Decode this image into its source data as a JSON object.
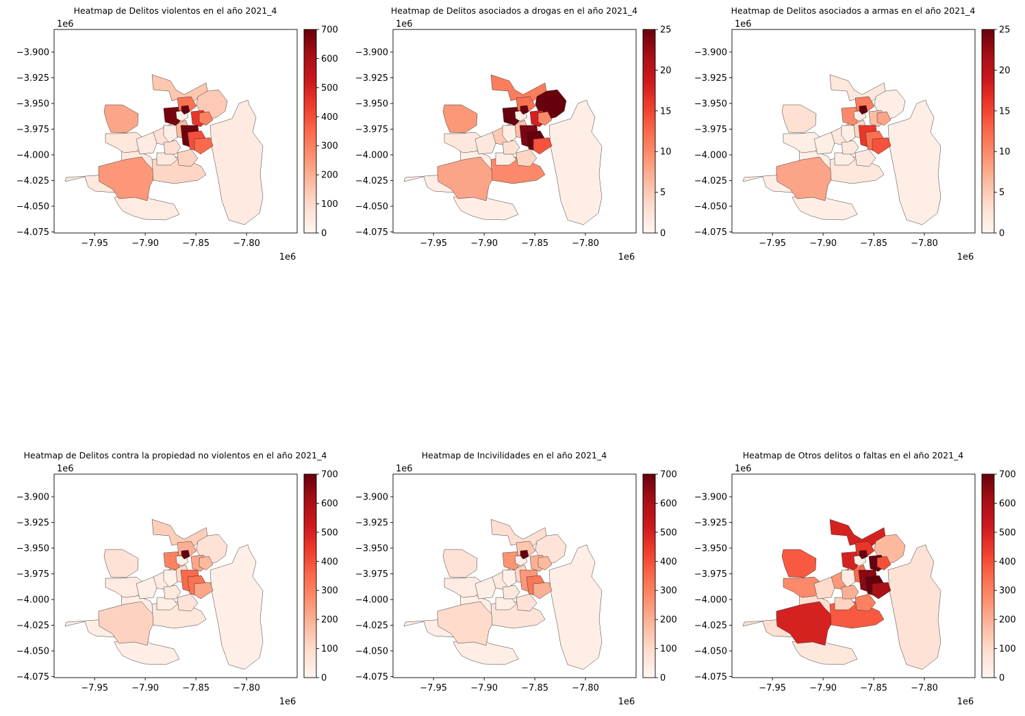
{
  "figure": {
    "panels": [
      {
        "title": "Heatmap de Delitos violentos en el año 2021_4",
        "vmax": 700,
        "cbar_ticks": [
          0,
          100,
          200,
          300,
          400,
          500,
          600,
          700
        ]
      },
      {
        "title": "Heatmap de Delitos asociados a drogas en el año 2021_4",
        "vmax": 25,
        "cbar_ticks": [
          0,
          5,
          10,
          15,
          20,
          25
        ]
      },
      {
        "title": "Heatmap de Delitos asociados a armas en el año 2021_4",
        "vmax": 25,
        "cbar_ticks": [
          0,
          5,
          10,
          15,
          20,
          25
        ]
      },
      {
        "title": "Heatmap de Delitos contra la propiedad no violentos en el año 2021_4",
        "vmax": 700,
        "cbar_ticks": [
          0,
          100,
          200,
          300,
          400,
          500,
          600,
          700
        ]
      },
      {
        "title": "Heatmap de Incivilidades en el año 2021_4",
        "vmax": 700,
        "cbar_ticks": [
          0,
          100,
          200,
          300,
          400,
          500,
          600,
          700
        ]
      },
      {
        "title": "Heatmap de Otros delitos o faltas en el año 2021_4",
        "vmax": 700,
        "cbar_ticks": [
          0,
          100,
          200,
          300,
          400,
          500,
          600,
          700
        ]
      }
    ],
    "x_ticks": [
      "−7.95",
      "−7.90",
      "−7.85",
      "−7.80"
    ],
    "y_ticks": [
      "−3.900",
      "−3.925",
      "−3.950",
      "−3.975",
      "−4.000",
      "−4.025",
      "−4.050",
      "−4.075"
    ],
    "offset_label": "1e6",
    "colormap": "Reds",
    "cmap_stops": [
      "#fff5f0",
      "#fee0d2",
      "#fcbba1",
      "#fc9272",
      "#fb6a4a",
      "#ef3b2c",
      "#cb181d",
      "#a50f15",
      "#67000d"
    ]
  },
  "chart_data": [
    {
      "type": "heatmap",
      "title": "Heatmap de Delitos violentos en el año 2021_4",
      "xlabel": "",
      "ylabel": "",
      "xlim": [
        -7.99,
        -7.75
      ],
      "ylim": [
        -4.076,
        -3.878
      ],
      "colorbar": {
        "vmin": 0,
        "vmax": 700,
        "ticks": [
          0,
          100,
          200,
          300,
          400,
          500,
          600,
          700
        ]
      },
      "regions": [
        {
          "name": "",
          "value": 50
        },
        {
          "name": "",
          "value": 40
        },
        {
          "name": "",
          "value": 150
        },
        {
          "name": "",
          "value": 250
        },
        {
          "name": "",
          "value": 220
        },
        {
          "name": "",
          "value": 140
        },
        {
          "name": "",
          "value": 60
        },
        {
          "name": "",
          "value": 45
        },
        {
          "name": "",
          "value": 110
        },
        {
          "name": "",
          "value": 80
        },
        {
          "name": "",
          "value": 40
        },
        {
          "name": "",
          "value": 50
        },
        {
          "name": "",
          "value": 120
        },
        {
          "name": "",
          "value": 90
        },
        {
          "name": "",
          "value": 180
        },
        {
          "name": "",
          "value": 450
        },
        {
          "name": "",
          "value": 680
        },
        {
          "name": "",
          "value": 690
        },
        {
          "name": "",
          "value": 400
        },
        {
          "name": "",
          "value": 330
        },
        {
          "name": "",
          "value": 30
        },
        {
          "name": "",
          "value": 350
        },
        {
          "name": "",
          "value": 20
        },
        {
          "name": "",
          "value": 300
        },
        {
          "name": "",
          "value": 700
        }
      ]
    },
    {
      "type": "heatmap",
      "title": "Heatmap de Delitos asociados a drogas en el año 2021_4",
      "xlabel": "",
      "ylabel": "",
      "xlim": [
        -7.99,
        -7.75
      ],
      "ylim": [
        -4.076,
        -3.878
      ],
      "colorbar": {
        "vmin": 0,
        "vmax": 25,
        "ticks": [
          0,
          5,
          10,
          15,
          20,
          25
        ]
      },
      "regions": [
        {
          "name": "",
          "value": 1
        },
        {
          "name": "",
          "value": 1
        },
        {
          "name": "",
          "value": 11
        },
        {
          "name": "",
          "value": 8
        },
        {
          "name": "",
          "value": 9
        },
        {
          "name": "",
          "value": 25
        },
        {
          "name": "",
          "value": 2
        },
        {
          "name": "",
          "value": 1
        },
        {
          "name": "",
          "value": 10
        },
        {
          "name": "",
          "value": 5
        },
        {
          "name": "",
          "value": 2
        },
        {
          "name": "",
          "value": 1
        },
        {
          "name": "",
          "value": 4
        },
        {
          "name": "",
          "value": 3
        },
        {
          "name": "",
          "value": 6
        },
        {
          "name": "",
          "value": 18
        },
        {
          "name": "",
          "value": 25
        },
        {
          "name": "",
          "value": 24
        },
        {
          "name": "",
          "value": 25
        },
        {
          "name": "",
          "value": 12
        },
        {
          "name": "",
          "value": 1
        },
        {
          "name": "",
          "value": 14
        },
        {
          "name": "",
          "value": 1
        },
        {
          "name": "",
          "value": 10
        },
        {
          "name": "",
          "value": 25
        }
      ]
    },
    {
      "type": "heatmap",
      "title": "Heatmap de Delitos asociados a armas en el año 2021_4",
      "xlabel": "",
      "ylabel": "",
      "xlim": [
        -7.99,
        -7.75
      ],
      "ylim": [
        -4.076,
        -3.878
      ],
      "colorbar": {
        "vmin": 0,
        "vmax": 25,
        "ticks": [
          0,
          5,
          10,
          15,
          20,
          25
        ]
      },
      "regions": [
        {
          "name": "",
          "value": 1
        },
        {
          "name": "",
          "value": 1
        },
        {
          "name": "",
          "value": 2
        },
        {
          "name": "",
          "value": 8
        },
        {
          "name": "",
          "value": 3
        },
        {
          "name": "",
          "value": 1
        },
        {
          "name": "",
          "value": 1
        },
        {
          "name": "",
          "value": 1
        },
        {
          "name": "",
          "value": 2
        },
        {
          "name": "",
          "value": 2
        },
        {
          "name": "",
          "value": 1
        },
        {
          "name": "",
          "value": 1
        },
        {
          "name": "",
          "value": 2
        },
        {
          "name": "",
          "value": 2
        },
        {
          "name": "",
          "value": 4
        },
        {
          "name": "",
          "value": 6
        },
        {
          "name": "",
          "value": 10
        },
        {
          "name": "",
          "value": 16
        },
        {
          "name": "",
          "value": 12
        },
        {
          "name": "",
          "value": 11
        },
        {
          "name": "",
          "value": 1
        },
        {
          "name": "",
          "value": 14
        },
        {
          "name": "",
          "value": 1
        },
        {
          "name": "",
          "value": 8
        },
        {
          "name": "",
          "value": 25
        }
      ]
    },
    {
      "type": "heatmap",
      "title": "Heatmap de Delitos contra la propiedad no violentos en el año 2021_4",
      "xlabel": "",
      "ylabel": "",
      "xlim": [
        -7.99,
        -7.75
      ],
      "ylim": [
        -4.076,
        -3.878
      ],
      "colorbar": {
        "vmin": 0,
        "vmax": 700,
        "ticks": [
          0,
          100,
          200,
          300,
          400,
          500,
          600,
          700
        ]
      },
      "regions": [
        {
          "name": "",
          "value": 30
        },
        {
          "name": "",
          "value": 30
        },
        {
          "name": "",
          "value": 130
        },
        {
          "name": "",
          "value": 120
        },
        {
          "name": "",
          "value": 80
        },
        {
          "name": "",
          "value": 80
        },
        {
          "name": "",
          "value": 40
        },
        {
          "name": "",
          "value": 25
        },
        {
          "name": "",
          "value": 60
        },
        {
          "name": "",
          "value": 40
        },
        {
          "name": "",
          "value": 25
        },
        {
          "name": "",
          "value": 30
        },
        {
          "name": "",
          "value": 70
        },
        {
          "name": "",
          "value": 50
        },
        {
          "name": "",
          "value": 100
        },
        {
          "name": "",
          "value": 220
        },
        {
          "name": "",
          "value": 300
        },
        {
          "name": "",
          "value": 350
        },
        {
          "name": "",
          "value": 330
        },
        {
          "name": "",
          "value": 200
        },
        {
          "name": "",
          "value": 20
        },
        {
          "name": "",
          "value": 220
        },
        {
          "name": "",
          "value": 20
        },
        {
          "name": "",
          "value": 180
        },
        {
          "name": "",
          "value": 700
        }
      ]
    },
    {
      "type": "heatmap",
      "title": "Heatmap de Incivilidades en el año 2021_4",
      "xlabel": "",
      "ylabel": "",
      "xlim": [
        -7.99,
        -7.75
      ],
      "ylim": [
        -4.076,
        -3.878
      ],
      "colorbar": {
        "vmin": 0,
        "vmax": 700,
        "ticks": [
          0,
          100,
          200,
          300,
          400,
          500,
          600,
          700
        ]
      },
      "regions": [
        {
          "name": "",
          "value": 30
        },
        {
          "name": "",
          "value": 30
        },
        {
          "name": "",
          "value": 90
        },
        {
          "name": "",
          "value": 100
        },
        {
          "name": "",
          "value": 80
        },
        {
          "name": "",
          "value": 70
        },
        {
          "name": "",
          "value": 40
        },
        {
          "name": "",
          "value": 30
        },
        {
          "name": "",
          "value": 70
        },
        {
          "name": "",
          "value": 50
        },
        {
          "name": "",
          "value": 30
        },
        {
          "name": "",
          "value": 30
        },
        {
          "name": "",
          "value": 80
        },
        {
          "name": "",
          "value": 60
        },
        {
          "name": "",
          "value": 110
        },
        {
          "name": "",
          "value": 200
        },
        {
          "name": "",
          "value": 260
        },
        {
          "name": "",
          "value": 250
        },
        {
          "name": "",
          "value": 320
        },
        {
          "name": "",
          "value": 150
        },
        {
          "name": "",
          "value": 20
        },
        {
          "name": "",
          "value": 200
        },
        {
          "name": "",
          "value": 20
        },
        {
          "name": "",
          "value": 180
        },
        {
          "name": "",
          "value": 700
        }
      ]
    },
    {
      "type": "heatmap",
      "title": "Heatmap de Otros delitos o faltas en el año 2021_4",
      "xlabel": "",
      "ylabel": "",
      "xlim": [
        -7.99,
        -7.75
      ],
      "ylim": [
        -4.076,
        -3.878
      ],
      "colorbar": {
        "vmin": 0,
        "vmax": 700,
        "ticks": [
          0,
          100,
          200,
          300,
          400,
          500,
          600,
          700
        ]
      },
      "regions": [
        {
          "name": "",
          "value": 90
        },
        {
          "name": "",
          "value": 60
        },
        {
          "name": "",
          "value": 500
        },
        {
          "name": "",
          "value": 500
        },
        {
          "name": "",
          "value": 380
        },
        {
          "name": "",
          "value": 180
        },
        {
          "name": "",
          "value": 280
        },
        {
          "name": "",
          "value": 80
        },
        {
          "name": "",
          "value": 380
        },
        {
          "name": "",
          "value": 250
        },
        {
          "name": "",
          "value": 100
        },
        {
          "name": "",
          "value": 120
        },
        {
          "name": "",
          "value": 300
        },
        {
          "name": "",
          "value": 200
        },
        {
          "name": "",
          "value": 350
        },
        {
          "name": "",
          "value": 700
        },
        {
          "name": "",
          "value": 500
        },
        {
          "name": "",
          "value": 650
        },
        {
          "name": "",
          "value": 700
        },
        {
          "name": "",
          "value": 450
        },
        {
          "name": "",
          "value": 40
        },
        {
          "name": "",
          "value": 600
        },
        {
          "name": "",
          "value": 30
        },
        {
          "name": "",
          "value": 400
        },
        {
          "name": "",
          "value": 700
        }
      ]
    }
  ]
}
